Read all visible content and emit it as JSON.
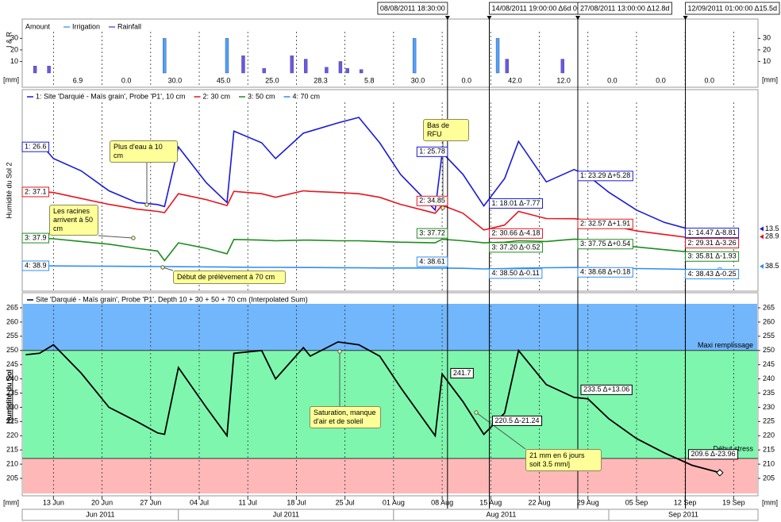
{
  "chart_data": [
    {
      "type": "bar",
      "legend_title": "Amount",
      "y_label": "I & R",
      "unit_label": "[mm]",
      "x": [
        "2011-06-10",
        "2011-06-12",
        "2011-06-29",
        "2011-07-08",
        "2011-07-10",
        "2011-07-13",
        "2011-07-17",
        "2011-07-19",
        "2011-07-22",
        "2011-07-24",
        "2011-07-25",
        "2011-07-27",
        "2011-08-04",
        "2011-08-16",
        "2011-08-17",
        "2011-08-25"
      ],
      "series": [
        {
          "name": "Irrigation",
          "color": "#4fa3f2",
          "values": [
            null,
            null,
            30,
            30,
            null,
            null,
            null,
            null,
            null,
            null,
            null,
            null,
            30,
            30,
            null,
            null
          ]
        },
        {
          "name": "Rainfall",
          "color": "#6a58de",
          "values": [
            6,
            6,
            null,
            null,
            15,
            4,
            15,
            12,
            5,
            10,
            4,
            3,
            null,
            null,
            12,
            12
          ]
        }
      ],
      "xlim": [
        "2011-06-08T12:00",
        "2011-09-22T12:00"
      ],
      "ylim": [
        0,
        33
      ],
      "yticks": [
        10,
        20,
        30
      ],
      "weekly_totals": [
        "6.9",
        "0.0",
        "30.0",
        "45.0",
        "25.0",
        "28.3",
        "5.8",
        "30.0",
        "0.0",
        "42.0",
        "12.0",
        "0.0",
        "0.0",
        "0.0"
      ]
    },
    {
      "type": "line",
      "y_label": "Humidité du Sol 2",
      "x": [
        "2011-06-09",
        "2011-06-11",
        "2011-06-13",
        "2011-06-17",
        "2011-06-21",
        "2011-06-25",
        "2011-06-28",
        "2011-06-29",
        "2011-07-01",
        "2011-07-05",
        "2011-07-08",
        "2011-07-09",
        "2011-07-13",
        "2011-07-15",
        "2011-07-19",
        "2011-07-20",
        "2011-07-24",
        "2011-07-27",
        "2011-07-30",
        "2011-08-02",
        "2011-08-07",
        "2011-08-08",
        "2011-08-11",
        "2011-08-14",
        "2011-08-17",
        "2011-08-19",
        "2011-08-23",
        "2011-08-27",
        "2011-08-29",
        "2011-09-01",
        "2011-09-05",
        "2011-09-09",
        "2011-09-13",
        "2011-09-17"
      ],
      "xlim": [
        "2011-06-08T12:00",
        "2011-09-22T12:00"
      ],
      "series": [
        {
          "name": "1: Site 'Darquié - Maïs grain', Probe 'P1', 10 cm",
          "color": "#1a1ad6",
          "ylim": [
            7.55,
            33.9
          ],
          "start_label": "1: 26.6",
          "end_label": "13.5",
          "values": [
            26.6,
            27.2,
            24.9,
            23.1,
            20.2,
            18.5,
            18.2,
            17.9,
            26.6,
            21.4,
            18.5,
            28.9,
            27.2,
            24.9,
            28.6,
            28.9,
            30.1,
            30.9,
            27.2,
            22.6,
            17.4,
            25.78,
            22.6,
            18.0,
            22.0,
            27.4,
            21.5,
            23.3,
            22.4,
            20.0,
            17.4,
            15.6,
            14.5,
            14.2
          ]
        },
        {
          "name": "2: 30 cm",
          "color": "#e8141e",
          "ylim": [
            22.6,
            53.2
          ],
          "start_label": "2: 37.1",
          "end_label": "28.9",
          "values": [
            37.1,
            37.2,
            37.0,
            36.0,
            35.0,
            34.2,
            33.8,
            33.6,
            36.8,
            35.8,
            34.8,
            37.2,
            36.8,
            36.2,
            37.3,
            37.2,
            37.0,
            36.8,
            36.2,
            35.0,
            33.5,
            34.85,
            33.5,
            30.66,
            31.5,
            33.8,
            32.6,
            32.57,
            32.3,
            31.5,
            30.5,
            29.9,
            29.31,
            29.0
          ]
        },
        {
          "name": "3: 50 cm",
          "color": "#1e8c1e",
          "ylim": [
            32.1,
            58.6
          ],
          "start_label": "3: 37.9",
          "values": [
            37.9,
            37.9,
            37.8,
            37.4,
            37.0,
            36.4,
            36.0,
            34.6,
            37.2,
            36.4,
            35.6,
            37.7,
            37.6,
            37.5,
            37.6,
            37.6,
            37.5,
            37.5,
            37.4,
            37.3,
            37.2,
            37.72,
            37.5,
            37.2,
            37.3,
            37.5,
            37.4,
            37.75,
            37.6,
            37.0,
            36.6,
            36.2,
            35.81,
            35.6
          ]
        },
        {
          "name": "4: 70 cm",
          "color": "#2f8ff0",
          "ylim": [
            37.4,
            60.2
          ],
          "start_label": "4: 38.9",
          "end_label": "38.5",
          "values": [
            38.9,
            38.9,
            38.88,
            38.86,
            38.84,
            38.82,
            38.8,
            38.8,
            38.78,
            38.76,
            38.74,
            38.72,
            38.7,
            38.7,
            38.68,
            38.68,
            38.66,
            38.64,
            38.62,
            38.62,
            38.61,
            38.61,
            38.58,
            38.5,
            38.55,
            38.6,
            38.65,
            38.68,
            38.66,
            38.6,
            38.55,
            38.5,
            38.43,
            38.42
          ]
        }
      ],
      "annotations": [
        "Plus d'eau à 10 cm",
        "Les racines arrivent à 50 cm",
        "Début de prélèvement à 70 cm",
        "Bas de RFU"
      ]
    },
    {
      "type": "line",
      "y_label": "Humidité du Sol",
      "unit_label": "[mm]",
      "x": [
        "2011-06-09",
        "2011-06-11",
        "2011-06-13",
        "2011-06-17",
        "2011-06-21",
        "2011-06-25",
        "2011-06-28",
        "2011-06-29",
        "2011-07-01",
        "2011-07-05",
        "2011-07-08",
        "2011-07-09",
        "2011-07-13",
        "2011-07-15",
        "2011-07-19",
        "2011-07-20",
        "2011-07-24",
        "2011-07-27",
        "2011-07-30",
        "2011-08-02",
        "2011-08-07",
        "2011-08-08",
        "2011-08-11",
        "2011-08-14",
        "2011-08-17",
        "2011-08-19",
        "2011-08-23",
        "2011-08-27",
        "2011-08-29",
        "2011-09-01",
        "2011-09-05",
        "2011-09-09",
        "2011-09-13",
        "2011-09-17"
      ],
      "series": [
        {
          "name": "Site 'Darquié - Maïs grain', Probe 'P1', Depth 10 + 30 + 50 + 70 cm (Interpolated Sum)",
          "color": "#000000",
          "values": [
            248.5,
            249,
            252,
            242,
            230,
            225,
            221,
            220.5,
            244,
            230,
            220,
            249,
            250,
            240,
            251,
            248,
            253,
            252,
            248,
            237,
            220,
            241.7,
            232,
            220.5,
            228,
            250,
            238,
            233.5,
            233,
            226,
            219,
            214,
            209.6,
            207
          ]
        }
      ],
      "xlim": [
        "2011-06-08T12:00",
        "2011-09-22T12:00"
      ],
      "ylim": [
        199.7,
        266.4
      ],
      "yticks": [
        205,
        210,
        215,
        220,
        225,
        230,
        235,
        240,
        245,
        250,
        255,
        260,
        265
      ],
      "xticks": [
        {
          "value": "2011-06-13",
          "label": "13 Jun"
        },
        {
          "value": "2011-06-20",
          "label": "20 Jun"
        },
        {
          "value": "2011-06-27",
          "label": "27 Jun"
        },
        {
          "value": "2011-07-04",
          "label": "04 Jul"
        },
        {
          "value": "2011-07-11",
          "label": "11 Jul"
        },
        {
          "value": "2011-07-18",
          "label": "18 Jul"
        },
        {
          "value": "2011-07-25",
          "label": "25 Jul"
        },
        {
          "value": "2011-08-01",
          "label": "01 Aug"
        },
        {
          "value": "2011-08-08",
          "label": "08 Aug"
        },
        {
          "value": "2011-08-15",
          "label": "15 Aug"
        },
        {
          "value": "2011-08-22",
          "label": "22 Aug"
        },
        {
          "value": "2011-08-29",
          "label": "29 Aug"
        },
        {
          "value": "2011-09-05",
          "label": "05 Sep"
        },
        {
          "value": "2011-09-12",
          "label": "12 Sep"
        },
        {
          "value": "2011-09-19",
          "label": "19 Sep"
        }
      ],
      "months": [
        {
          "value": "2011-06",
          "label": "Jun 2011"
        },
        {
          "value": "2011-07",
          "label": "Jul 2011"
        },
        {
          "value": "2011-08",
          "label": "Aug 2011"
        },
        {
          "value": "2011-09",
          "label": "Sep 2011"
        }
      ],
      "thresholds": [
        {
          "value": 250,
          "label": "Maxi remplissage"
        },
        {
          "value": 212,
          "label": "Début stress"
        }
      ],
      "zone_colors": [
        "#72b6fb",
        "#7ef6ae",
        "#ffb8b8"
      ],
      "annotations": [
        "Saturation, manque d'air et de soleil",
        "21 mm en 6 jours soit 3.5 mm/j"
      ]
    }
  ],
  "cursors": [
    {
      "x": "2011-08-08T18:30",
      "label": "08/08/2011 18:30:00",
      "moisture": [
        "1: 25.78",
        "2: 34.85",
        "3: 37.72",
        "4: 38.61"
      ],
      "sum": "241.7"
    },
    {
      "x": "2011-08-14T19:00",
      "label": "14/08/2011 19:00:00 Δ6d 00",
      "moisture": [
        "1: 18.01 Δ-7.77",
        "2: 30.66 Δ-4.18",
        "3: 37.20 Δ-0.52",
        "4: 38.50 Δ-0.11"
      ],
      "sum": "220.5 Δ-21.24"
    },
    {
      "x": "2011-08-27T13:00",
      "label": "27/08/2011 13:00:00 Δ12.8d",
      "moisture": [
        "1: 23.29 Δ+5.28",
        "2: 32.57 Δ+1.91",
        "3: 37.75 Δ+0.54",
        "4: 38.68 Δ+0.18"
      ],
      "sum": "233.5 Δ+13.06"
    },
    {
      "x": "2011-09-12T01:00",
      "label": "12/09/2011 01:00:00 Δ15.5d",
      "moisture": [
        "1: 14.47 Δ-8.81",
        "2: 29.31 Δ-3.26",
        "3: 35.81 Δ-1.93",
        "4: 38.43 Δ-0.25"
      ],
      "sum": "209.6 Δ-23.96"
    }
  ]
}
